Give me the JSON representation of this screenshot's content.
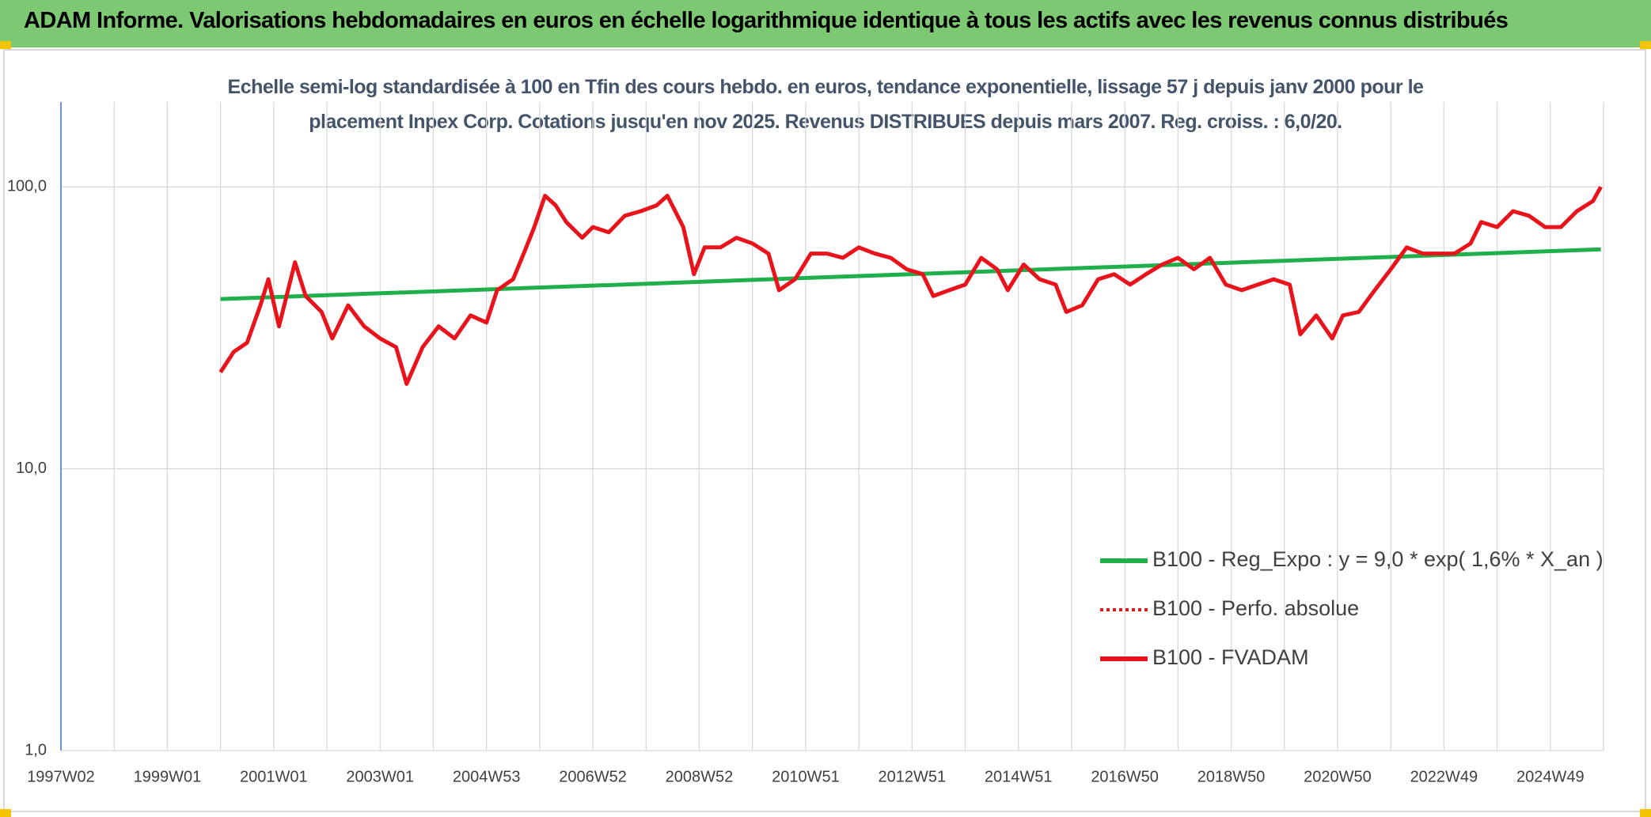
{
  "header": {
    "title": "ADAM Informe. Valorisations hebdomadaires en euros en échelle logarithmique identique à tous les actifs avec les revenus connus distribués"
  },
  "chart_data": {
    "type": "line",
    "subtitle": "Echelle semi-log standardisée à 100 en Tfin des cours hebdo. en euros, tendance exponentielle, lissage 57 j depuis janv 2000 pour le placement Inpex Corp. Cotations jusqu'en nov 2025. Revenus DISTRIBUES depuis mars 2007. Reg. croiss. : 6,0/20.",
    "log_y": true,
    "grid": true,
    "legend": "bottom-right",
    "xlim": [
      1997,
      2026
    ],
    "xticks": [
      {
        "value": 1997,
        "label": "1997W02"
      },
      {
        "value": 1998,
        "label": null
      },
      {
        "value": 1999,
        "label": "1999W01"
      },
      {
        "value": 2000,
        "label": null
      },
      {
        "value": 2001,
        "label": "2001W01"
      },
      {
        "value": 2002,
        "label": null
      },
      {
        "value": 2003,
        "label": "2003W01"
      },
      {
        "value": 2004,
        "label": null
      },
      {
        "value": 2005,
        "label": "2004W53"
      },
      {
        "value": 2006,
        "label": null
      },
      {
        "value": 2007,
        "label": "2006W52"
      },
      {
        "value": 2008,
        "label": null
      },
      {
        "value": 2009,
        "label": "2008W52"
      },
      {
        "value": 2010,
        "label": null
      },
      {
        "value": 2011,
        "label": "2010W51"
      },
      {
        "value": 2012,
        "label": null
      },
      {
        "value": 2013,
        "label": "2012W51"
      },
      {
        "value": 2014,
        "label": null
      },
      {
        "value": 2015,
        "label": "2014W51"
      },
      {
        "value": 2016,
        "label": null
      },
      {
        "value": 2017,
        "label": "2016W50"
      },
      {
        "value": 2018,
        "label": null
      },
      {
        "value": 2019,
        "label": "2018W50"
      },
      {
        "value": 2020,
        "label": null
      },
      {
        "value": 2021,
        "label": "2020W50"
      },
      {
        "value": 2022,
        "label": null
      },
      {
        "value": 2023,
        "label": "2022W49"
      },
      {
        "value": 2024,
        "label": null
      },
      {
        "value": 2025,
        "label": "2024W49"
      },
      {
        "value": 2026,
        "label": null
      }
    ],
    "ylim": [
      1,
      200
    ],
    "yticks": [
      {
        "value": 1,
        "label": "1,0"
      },
      {
        "value": 10,
        "label": "10,0"
      },
      {
        "value": 100,
        "label": "100,0"
      }
    ],
    "series": [
      {
        "name": "B100 - Reg_Expo : y = 9,0 * exp( 1,6% *  X_an )",
        "color": "#1fb04b",
        "dash": "solid",
        "x": [
          2000.0,
          2025.95
        ],
        "values": [
          40,
          60
        ]
      },
      {
        "name": "B100 - Perfo. absolue",
        "color": "#e8131b",
        "dash": "dotted"
      },
      {
        "name": "B100 - FVADAM",
        "color": "#e8131b",
        "dash": "solid",
        "x": [
          2000.0,
          2000.25,
          2000.5,
          2000.75,
          2000.9,
          2001.1,
          2001.4,
          2001.6,
          2001.9,
          2002.1,
          2002.4,
          2002.7,
          2003.0,
          2003.3,
          2003.5,
          2003.8,
          2004.1,
          2004.4,
          2004.7,
          2005.0,
          2005.2,
          2005.5,
          2005.7,
          2005.9,
          2006.1,
          2006.3,
          2006.5,
          2006.8,
          2007.0,
          2007.3,
          2007.6,
          2007.9,
          2008.2,
          2008.4,
          2008.7,
          2008.9,
          2009.1,
          2009.4,
          2009.7,
          2010.0,
          2010.3,
          2010.5,
          2010.8,
          2011.1,
          2011.4,
          2011.7,
          2012.0,
          2012.3,
          2012.6,
          2012.9,
          2013.2,
          2013.4,
          2013.7,
          2014.0,
          2014.3,
          2014.6,
          2014.8,
          2015.1,
          2015.4,
          2015.7,
          2015.9,
          2016.2,
          2016.5,
          2016.8,
          2017.1,
          2017.4,
          2017.7,
          2018.0,
          2018.3,
          2018.6,
          2018.9,
          2019.2,
          2019.5,
          2019.8,
          2020.1,
          2020.3,
          2020.6,
          2020.9,
          2021.1,
          2021.4,
          2021.7,
          2022.0,
          2022.3,
          2022.6,
          2022.9,
          2023.2,
          2023.5,
          2023.7,
          2024.0,
          2024.3,
          2024.6,
          2024.9,
          2025.2,
          2025.5,
          2025.8,
          2025.95
        ],
        "values": [
          22,
          26,
          28,
          38,
          47,
          32,
          54,
          41,
          36,
          29,
          38,
          32,
          29,
          27,
          20,
          27,
          32,
          29,
          35,
          33,
          43,
          47,
          58,
          72,
          93,
          86,
          75,
          66,
          72,
          69,
          79,
          82,
          86,
          93,
          72,
          49,
          61,
          61,
          66,
          63,
          58,
          43,
          47,
          58,
          58,
          56,
          61,
          58,
          56,
          51,
          49,
          41,
          43,
          45,
          56,
          51,
          43,
          53,
          47,
          45,
          36,
          38,
          47,
          49,
          45,
          49,
          53,
          56,
          51,
          56,
          45,
          43,
          45,
          47,
          45,
          30,
          35,
          29,
          35,
          36,
          43,
          51,
          61,
          58,
          58,
          58,
          63,
          75,
          72,
          82,
          79,
          72,
          72,
          82,
          89,
          100
        ]
      }
    ]
  }
}
